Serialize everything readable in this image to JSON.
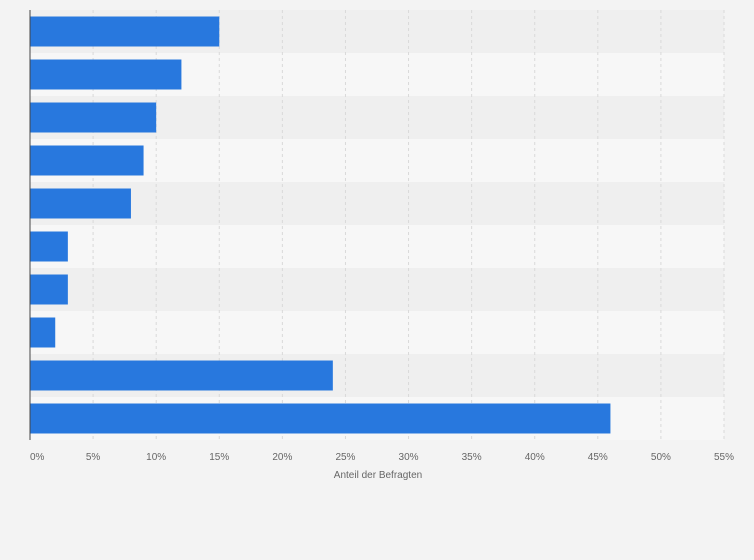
{
  "chart_data": {
    "type": "bar",
    "orientation": "horizontal",
    "categories": [
      "",
      "",
      "",
      "",
      "",
      "",
      "",
      "",
      "",
      ""
    ],
    "values": [
      15,
      12,
      10,
      9,
      8,
      3,
      3,
      2,
      24,
      46
    ],
    "unit": "%",
    "title": "",
    "xlabel": "Anteil der Befragten",
    "ylabel": "",
    "xlim": [
      0,
      55
    ],
    "xticks": [
      0,
      5,
      10,
      15,
      20,
      25,
      30,
      35,
      40,
      45,
      50,
      55
    ],
    "xtick_labels": [
      "0%",
      "5%",
      "10%",
      "15%",
      "20%",
      "25%",
      "30%",
      "35%",
      "40%",
      "45%",
      "50%",
      "55%"
    ],
    "grid": true,
    "legend": "none",
    "colors": {
      "bar": "#2878de",
      "band_light": "#f7f7f7",
      "band_dark": "#efefef",
      "grid": "#d9d9d9",
      "axis": "#444444",
      "tick_text": "#666666",
      "page_background": "#f3f3f3"
    }
  }
}
